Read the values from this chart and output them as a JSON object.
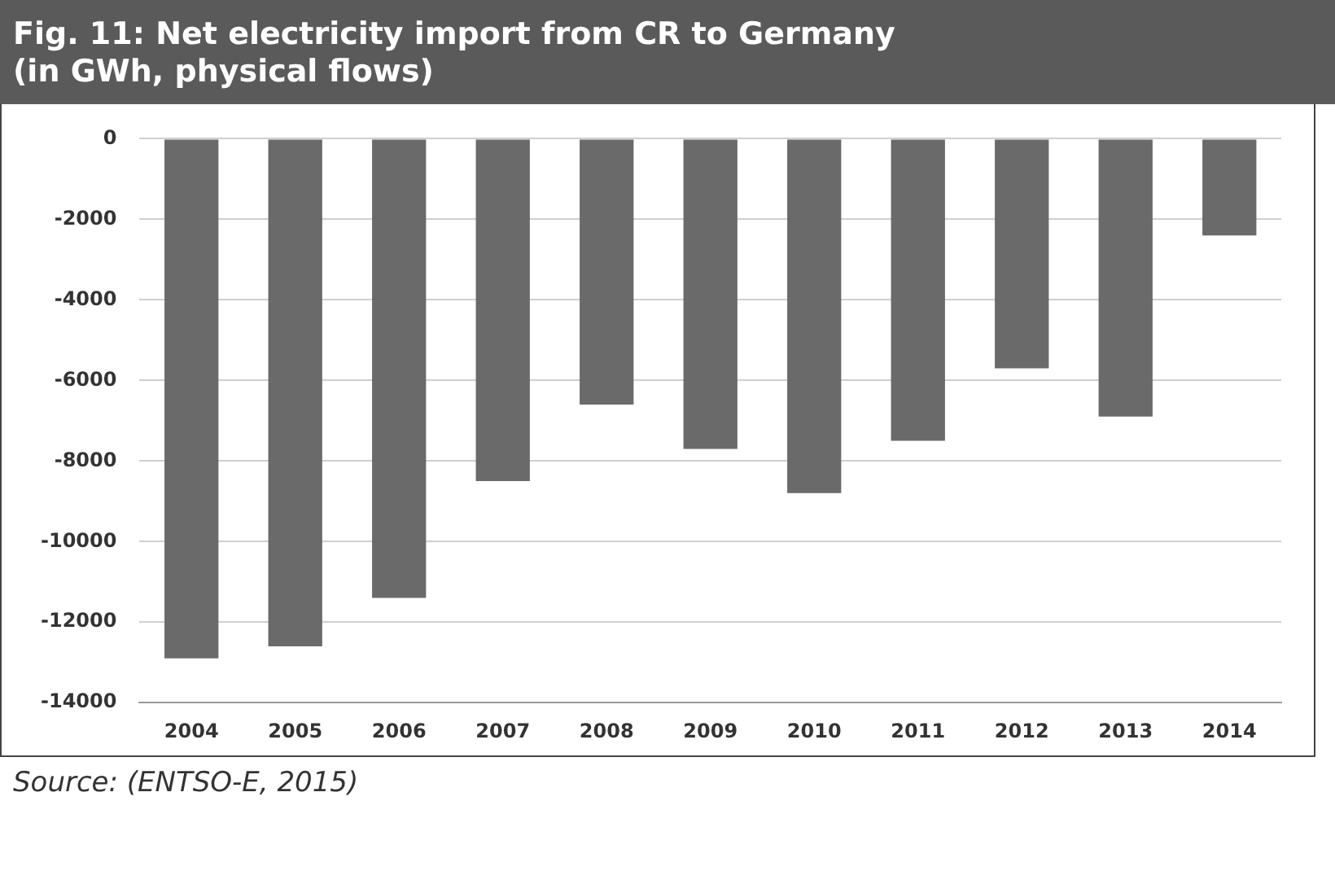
{
  "chart_data": {
    "type": "bar",
    "title": "Fig. 11: Net electricity import from CR to Germany\n(in GWh, physical flows)",
    "categories": [
      "2004",
      "2005",
      "2006",
      "2007",
      "2008",
      "2009",
      "2010",
      "2011",
      "2012",
      "2013",
      "2014"
    ],
    "values": [
      -12900,
      -12600,
      -11400,
      -8500,
      -6600,
      -7700,
      -8800,
      -7500,
      -5700,
      -6900,
      -2400
    ],
    "color": "#6a6a6a",
    "ylim": [
      -14000,
      0
    ],
    "yticks": [
      -14000,
      -12000,
      -10000,
      -8000,
      -6000,
      -4000,
      -2000,
      0
    ],
    "grid": "y",
    "legend": false,
    "annotations": [
      "Source: (ENTSO-E, 2015)"
    ]
  }
}
